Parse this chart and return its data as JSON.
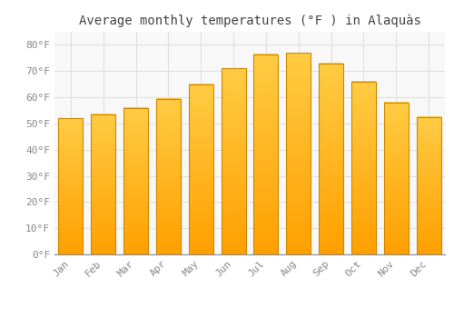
{
  "title": "Average monthly temperatures (°F ) in Alaquàs",
  "months": [
    "Jan",
    "Feb",
    "Mar",
    "Apr",
    "May",
    "Jun",
    "Jul",
    "Aug",
    "Sep",
    "Oct",
    "Nov",
    "Dec"
  ],
  "values": [
    52,
    53.5,
    56,
    59.5,
    65,
    71,
    76.5,
    77,
    73,
    66,
    58,
    52.5
  ],
  "bar_color_top": "#FFCC44",
  "bar_color_bottom": "#FFA000",
  "bar_edge_color": "#CC8800",
  "background_color": "#FFFFFF",
  "plot_bg_color": "#F8F8F8",
  "grid_color": "#E0E0E0",
  "yticks": [
    0,
    10,
    20,
    30,
    40,
    50,
    60,
    70,
    80
  ],
  "ylim": [
    0,
    85
  ],
  "ylabel_suffix": "°F",
  "title_fontsize": 10,
  "tick_fontsize": 8,
  "tick_color": "#888888",
  "title_color": "#444444",
  "font_family": "monospace",
  "bar_width": 0.75
}
